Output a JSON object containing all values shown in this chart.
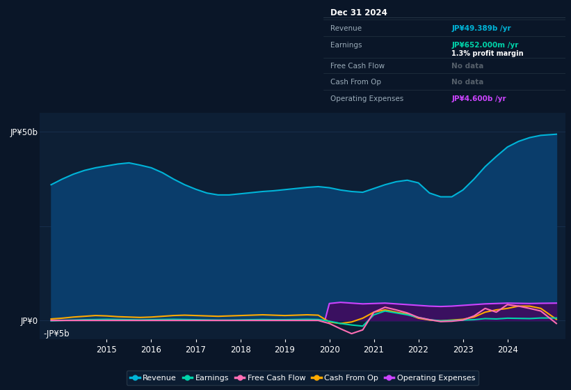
{
  "background_color": "#0a1628",
  "plot_bg_color": "#0d1f35",
  "grid_color": "#1a3050",
  "ylim": [
    -5000000000.0,
    55000000000.0
  ],
  "xlim_start": 2013.5,
  "xlim_end": 2025.3,
  "xticks": [
    2015,
    2016,
    2017,
    2018,
    2019,
    2020,
    2021,
    2022,
    2023,
    2024
  ],
  "ytick_labels_pos": [
    [
      0,
      "JP¥0"
    ],
    [
      50000000000.0,
      "JP¥50b"
    ]
  ],
  "ytick_neg_y": -5000000000.0,
  "ytick_neg_label": "-JP¥5b",
  "series": {
    "revenue": {
      "color": "#00b4d8",
      "fill_color": "#0a3d6b",
      "label": "Revenue",
      "x": [
        2013.75,
        2014.0,
        2014.25,
        2014.5,
        2014.75,
        2015.0,
        2015.25,
        2015.5,
        2015.75,
        2016.0,
        2016.25,
        2016.5,
        2016.75,
        2017.0,
        2017.25,
        2017.5,
        2017.75,
        2018.0,
        2018.25,
        2018.5,
        2018.75,
        2019.0,
        2019.25,
        2019.5,
        2019.75,
        2020.0,
        2020.25,
        2020.5,
        2020.75,
        2021.0,
        2021.25,
        2021.5,
        2021.75,
        2022.0,
        2022.25,
        2022.5,
        2022.75,
        2023.0,
        2023.25,
        2023.5,
        2023.75,
        2024.0,
        2024.25,
        2024.5,
        2024.75,
        2025.1
      ],
      "y": [
        36000000000.0,
        37500000000.0,
        38800000000.0,
        39800000000.0,
        40500000000.0,
        41000000000.0,
        41500000000.0,
        41800000000.0,
        41200000000.0,
        40500000000.0,
        39200000000.0,
        37500000000.0,
        36000000000.0,
        34800000000.0,
        33800000000.0,
        33300000000.0,
        33300000000.0,
        33600000000.0,
        33900000000.0,
        34200000000.0,
        34400000000.0,
        34700000000.0,
        35000000000.0,
        35300000000.0,
        35500000000.0,
        35200000000.0,
        34600000000.0,
        34200000000.0,
        34000000000.0,
        35000000000.0,
        36000000000.0,
        36800000000.0,
        37200000000.0,
        36500000000.0,
        33800000000.0,
        32800000000.0,
        32800000000.0,
        34600000000.0,
        37500000000.0,
        40800000000.0,
        43500000000.0,
        46000000000.0,
        47500000000.0,
        48500000000.0,
        49100000000.0,
        49400000000.0
      ]
    },
    "earnings": {
      "color": "#00d4aa",
      "label": "Earnings",
      "x": [
        2013.75,
        2014.0,
        2014.25,
        2014.5,
        2014.75,
        2015.0,
        2015.25,
        2015.5,
        2015.75,
        2016.0,
        2016.25,
        2016.5,
        2016.75,
        2017.0,
        2017.25,
        2017.5,
        2017.75,
        2018.0,
        2018.25,
        2018.5,
        2018.75,
        2019.0,
        2019.25,
        2019.5,
        2019.75,
        2020.0,
        2020.25,
        2020.5,
        2020.75,
        2021.0,
        2021.25,
        2021.5,
        2021.75,
        2022.0,
        2022.25,
        2022.5,
        2022.75,
        2023.0,
        2023.25,
        2023.5,
        2023.75,
        2024.0,
        2024.25,
        2024.5,
        2024.75,
        2025.1
      ],
      "y": [
        -100000000.0,
        0,
        100000000.0,
        200000000.0,
        250000000.0,
        300000000.0,
        250000000.0,
        200000000.0,
        150000000.0,
        200000000.0,
        250000000.0,
        300000000.0,
        250000000.0,
        200000000.0,
        150000000.0,
        100000000.0,
        100000000.0,
        150000000.0,
        200000000.0,
        250000000.0,
        200000000.0,
        200000000.0,
        250000000.0,
        300000000.0,
        250000000.0,
        -200000000.0,
        -800000000.0,
        -1200000000.0,
        -1500000000.0,
        1500000000.0,
        2500000000.0,
        2000000000.0,
        1500000000.0,
        800000000.0,
        200000000.0,
        -100000000.0,
        0,
        100000000.0,
        200000000.0,
        500000000.0,
        400000000.0,
        600000000.0,
        550000000.0,
        500000000.0,
        650000000.0,
        652000000.0
      ]
    },
    "free_cash_flow": {
      "color": "#ff6eb4",
      "label": "Free Cash Flow",
      "x": [
        2013.75,
        2014.5,
        2015.0,
        2015.5,
        2016.0,
        2016.5,
        2017.0,
        2017.5,
        2018.0,
        2018.5,
        2019.0,
        2019.5,
        2019.75,
        2020.0,
        2020.25,
        2020.5,
        2020.75,
        2021.0,
        2021.25,
        2021.5,
        2021.75,
        2022.0,
        2022.25,
        2022.5,
        2022.75,
        2023.0,
        2023.25,
        2023.5,
        2023.75,
        2024.0,
        2024.25,
        2024.5,
        2024.75,
        2025.1
      ],
      "y": [
        0,
        0,
        0,
        0,
        0,
        0,
        0,
        0,
        0,
        0,
        0,
        0,
        0,
        -800000000.0,
        -2200000000.0,
        -3500000000.0,
        -2500000000.0,
        2200000000.0,
        3500000000.0,
        2800000000.0,
        2000000000.0,
        800000000.0,
        200000000.0,
        -300000000.0,
        -200000000.0,
        100000000.0,
        1200000000.0,
        3200000000.0,
        2200000000.0,
        4200000000.0,
        3800000000.0,
        3200000000.0,
        2500000000.0,
        -800000000.0
      ]
    },
    "cash_from_op": {
      "color": "#ffaa00",
      "label": "Cash From Op",
      "x": [
        2013.75,
        2014.0,
        2014.25,
        2014.5,
        2014.75,
        2015.0,
        2015.25,
        2015.5,
        2015.75,
        2016.0,
        2016.25,
        2016.5,
        2016.75,
        2017.0,
        2017.25,
        2017.5,
        2017.75,
        2018.0,
        2018.25,
        2018.5,
        2018.75,
        2019.0,
        2019.25,
        2019.5,
        2019.75,
        2020.0,
        2020.25,
        2020.5,
        2020.75,
        2021.0,
        2021.25,
        2021.5,
        2021.75,
        2022.0,
        2022.25,
        2022.5,
        2022.75,
        2023.0,
        2023.25,
        2023.5,
        2023.75,
        2024.0,
        2024.25,
        2024.5,
        2024.75,
        2025.1
      ],
      "y": [
        400000000.0,
        600000000.0,
        900000000.0,
        1100000000.0,
        1300000000.0,
        1200000000.0,
        1000000000.0,
        900000000.0,
        800000000.0,
        900000000.0,
        1100000000.0,
        1300000000.0,
        1400000000.0,
        1300000000.0,
        1200000000.0,
        1100000000.0,
        1200000000.0,
        1300000000.0,
        1400000000.0,
        1500000000.0,
        1400000000.0,
        1300000000.0,
        1400000000.0,
        1500000000.0,
        1400000000.0,
        -400000000.0,
        -800000000.0,
        -400000000.0,
        600000000.0,
        2200000000.0,
        2800000000.0,
        2200000000.0,
        1700000000.0,
        600000000.0,
        100000000.0,
        -100000000.0,
        100000000.0,
        300000000.0,
        900000000.0,
        2200000000.0,
        2800000000.0,
        3200000000.0,
        3800000000.0,
        3800000000.0,
        3200000000.0,
        300000000.0
      ]
    },
    "operating_expenses": {
      "color": "#cc44ff",
      "fill_color": "#3a1060",
      "label": "Operating Expenses",
      "x": [
        2019.9,
        2020.0,
        2020.25,
        2020.5,
        2020.75,
        2021.0,
        2021.25,
        2021.5,
        2021.75,
        2022.0,
        2022.25,
        2022.5,
        2022.75,
        2023.0,
        2023.25,
        2023.5,
        2023.75,
        2024.0,
        2024.25,
        2024.5,
        2024.75,
        2025.1
      ],
      "y": [
        0,
        4500000000.0,
        4800000000.0,
        4600000000.0,
        4400000000.0,
        4500000000.0,
        4600000000.0,
        4400000000.0,
        4200000000.0,
        4000000000.0,
        3800000000.0,
        3700000000.0,
        3800000000.0,
        4000000000.0,
        4200000000.0,
        4400000000.0,
        4500000000.0,
        4600000000.0,
        4550000000.0,
        4500000000.0,
        4550000000.0,
        4600000000.0
      ]
    }
  },
  "legend": [
    {
      "label": "Revenue",
      "color": "#00b4d8"
    },
    {
      "label": "Earnings",
      "color": "#00d4aa"
    },
    {
      "label": "Free Cash Flow",
      "color": "#ff6eb4"
    },
    {
      "label": "Cash From Op",
      "color": "#ffaa00"
    },
    {
      "label": "Operating Expenses",
      "color": "#cc44ff"
    }
  ],
  "info_box": {
    "title": "Dec 31 2024",
    "title_color": "#ffffff",
    "bg_color": "#050d18",
    "border_color": "#2a3a4a",
    "rows": [
      {
        "label": "Revenue",
        "value": "JP¥49.389b /yr",
        "value_color": "#00b4d8",
        "note": null,
        "note_color": null
      },
      {
        "label": "Earnings",
        "value": "JP¥652.000m /yr",
        "value_color": "#00d4aa",
        "note": "1.3% profit margin",
        "note_color": "#ffffff"
      },
      {
        "label": "Free Cash Flow",
        "value": "No data",
        "value_color": "#555f6a",
        "note": null,
        "note_color": null
      },
      {
        "label": "Cash From Op",
        "value": "No data",
        "value_color": "#555f6a",
        "note": null,
        "note_color": null
      },
      {
        "label": "Operating Expenses",
        "value": "JP¥4.600b /yr",
        "value_color": "#cc44ff",
        "note": null,
        "note_color": null
      }
    ]
  }
}
